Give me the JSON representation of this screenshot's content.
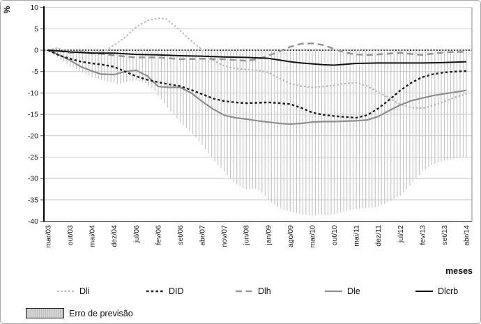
{
  "figure": {
    "unit_label": "%",
    "x_axis_title": "meses"
  },
  "axis": {
    "y_ticks": [
      10,
      5,
      0,
      -5,
      -10,
      -15,
      -20,
      -25,
      -30,
      -35,
      -40
    ],
    "ylim": [
      -40,
      10
    ],
    "x_labels": [
      "mar/03",
      "out/03",
      "mai/04",
      "dez/04",
      "jul/06",
      "fev/06",
      "set/06",
      "abr/07",
      "nov/07",
      "jun/08",
      "jan/09",
      "ago/09",
      "mar/10",
      "out/10",
      "mai/11",
      "dez/11",
      "jul/12",
      "fev/13",
      "set/13",
      "abr/14"
    ],
    "grid_color": "#cccccc",
    "axis_color": "#333333"
  },
  "chart_data": {
    "type": "line",
    "title": "",
    "xlabel": "meses",
    "ylabel": "%",
    "ylim": [
      -40,
      10
    ],
    "categories": [
      "mar/03",
      "out/03",
      "mai/04",
      "dez/04",
      "jul/06",
      "fev/06",
      "set/06",
      "abr/07",
      "nov/07",
      "jun/08",
      "jan/09",
      "ago/09",
      "mar/10",
      "out/10",
      "mai/11",
      "dez/11",
      "jul/12",
      "fev/13",
      "set/13",
      "abr/14"
    ],
    "x_is_category_index": true,
    "legend_position": "bottom",
    "grid": "horizontal",
    "series": [
      {
        "name": "Dli",
        "color": "#b5b5b5",
        "dash": "2.5 2.8",
        "width": 2,
        "points": [
          [
            0,
            0
          ],
          [
            0.4,
            0.5
          ],
          [
            0.8,
            -0.2
          ],
          [
            1,
            -0.6
          ],
          [
            1.4,
            -0.2
          ],
          [
            2,
            -0.5
          ],
          [
            2.5,
            -0.4
          ],
          [
            3,
            1.2
          ],
          [
            3.5,
            3
          ],
          [
            4,
            5.4
          ],
          [
            4.5,
            6.9
          ],
          [
            5,
            7.5
          ],
          [
            5.4,
            7.2
          ],
          [
            6,
            4.6
          ],
          [
            6.5,
            2.2
          ],
          [
            7,
            0.1
          ],
          [
            7.5,
            -2.4
          ],
          [
            8,
            -3.7
          ],
          [
            8.5,
            -4.3
          ],
          [
            9,
            -4.5
          ],
          [
            9.5,
            -4.7
          ],
          [
            10,
            -5.2
          ],
          [
            10.5,
            -6.6
          ],
          [
            11,
            -7.8
          ],
          [
            11.5,
            -8.4
          ],
          [
            12,
            -8.7
          ],
          [
            12.5,
            -8.5
          ],
          [
            13,
            -8.2
          ],
          [
            13.5,
            -7.8
          ],
          [
            14,
            -7.6
          ],
          [
            14.5,
            -8.4
          ],
          [
            15,
            -9.8
          ],
          [
            15.5,
            -11.2
          ],
          [
            16,
            -12.7
          ],
          [
            16.5,
            -13.4
          ],
          [
            17,
            -13.6
          ],
          [
            17.5,
            -12.9
          ],
          [
            18,
            -12
          ],
          [
            18.5,
            -11
          ],
          [
            19,
            -10.2
          ]
        ]
      },
      {
        "name": "DID",
        "color": "#1a1a1a",
        "dash": "3.5 3.2",
        "width": 2.4,
        "points": [
          [
            0,
            0
          ],
          [
            0.5,
            -1.2
          ],
          [
            1,
            -2
          ],
          [
            1.5,
            -2.7
          ],
          [
            2,
            -3.1
          ],
          [
            2.5,
            -3.4
          ],
          [
            3,
            -3.9
          ],
          [
            3.5,
            -5
          ],
          [
            4,
            -6.1
          ],
          [
            4.5,
            -6.9
          ],
          [
            5,
            -7.5
          ],
          [
            5.5,
            -8
          ],
          [
            6,
            -8.4
          ],
          [
            6.5,
            -9.3
          ],
          [
            7,
            -10.3
          ],
          [
            7.5,
            -11.3
          ],
          [
            8,
            -11.9
          ],
          [
            8.5,
            -12.2
          ],
          [
            9,
            -12.4
          ],
          [
            9.5,
            -12.3
          ],
          [
            10,
            -12.2
          ],
          [
            10.5,
            -12.4
          ],
          [
            11,
            -12.6
          ],
          [
            11.5,
            -13.5
          ],
          [
            12,
            -14.6
          ],
          [
            12.5,
            -15.1
          ],
          [
            13,
            -15.4
          ],
          [
            13.5,
            -15.6
          ],
          [
            14,
            -15.8
          ],
          [
            14.5,
            -15.2
          ],
          [
            15,
            -13.6
          ],
          [
            15.5,
            -11.6
          ],
          [
            16,
            -9.4
          ],
          [
            16.5,
            -7.6
          ],
          [
            17,
            -6.3
          ],
          [
            17.5,
            -5.6
          ],
          [
            18,
            -5.2
          ],
          [
            18.5,
            -5
          ],
          [
            19,
            -4.9
          ]
        ]
      },
      {
        "name": "Dlh",
        "color": "#979797",
        "dash": "9 5.5",
        "width": 2.6,
        "points": [
          [
            0,
            0
          ],
          [
            0.5,
            -0.2
          ],
          [
            1,
            -0.6
          ],
          [
            1.5,
            -0.5
          ],
          [
            2,
            -0.7
          ],
          [
            2.5,
            -0.9
          ],
          [
            3,
            -1.2
          ],
          [
            3.5,
            -1.5
          ],
          [
            4,
            -1.7
          ],
          [
            5,
            -1.7
          ],
          [
            5.5,
            -1.9
          ],
          [
            6,
            -2.1
          ],
          [
            7,
            -2
          ],
          [
            8,
            -2.1
          ],
          [
            8.5,
            -2.3
          ],
          [
            9,
            -2.5
          ],
          [
            9.5,
            -2.1
          ],
          [
            10,
            -1.3
          ],
          [
            10.5,
            -0.3
          ],
          [
            11,
            0.8
          ],
          [
            11.5,
            1.5
          ],
          [
            12,
            1.6
          ],
          [
            12.5,
            1.2
          ],
          [
            13,
            0.3
          ],
          [
            13.5,
            -0.6
          ],
          [
            14,
            -1
          ],
          [
            14.5,
            -1.1
          ],
          [
            15,
            -1
          ],
          [
            15.5,
            -0.8
          ],
          [
            16,
            -0.6
          ],
          [
            16.5,
            -0.9
          ],
          [
            17,
            -1.1
          ],
          [
            17.5,
            -0.8
          ],
          [
            18,
            -0.5
          ],
          [
            18.5,
            -0.4
          ],
          [
            19,
            -0.4
          ]
        ]
      },
      {
        "name": "Dle",
        "color": "#8e8e8e",
        "dash": "",
        "width": 2.2,
        "points": [
          [
            0,
            0
          ],
          [
            0.5,
            -1.1
          ],
          [
            1,
            -2.4
          ],
          [
            1.5,
            -3.9
          ],
          [
            2,
            -4.9
          ],
          [
            2.4,
            -5.6
          ],
          [
            3,
            -5.7
          ],
          [
            3.5,
            -5
          ],
          [
            4,
            -4.7
          ],
          [
            4.5,
            -6
          ],
          [
            5,
            -8.5
          ],
          [
            5.5,
            -8.7
          ],
          [
            6,
            -8.7
          ],
          [
            6.5,
            -10
          ],
          [
            7,
            -12
          ],
          [
            7.5,
            -13.8
          ],
          [
            8,
            -15.2
          ],
          [
            8.5,
            -15.8
          ],
          [
            9,
            -16.1
          ],
          [
            9.5,
            -16.5
          ],
          [
            10,
            -16.8
          ],
          [
            10.5,
            -17.1
          ],
          [
            11,
            -17.3
          ],
          [
            11.5,
            -17.1
          ],
          [
            12,
            -16.8
          ],
          [
            12.5,
            -16.7
          ],
          [
            13,
            -16.7
          ],
          [
            13.5,
            -16.6
          ],
          [
            14,
            -16.5
          ],
          [
            14.5,
            -16.3
          ],
          [
            15,
            -15.5
          ],
          [
            15.5,
            -14.1
          ],
          [
            16,
            -12.8
          ],
          [
            16.5,
            -11.8
          ],
          [
            17,
            -11.2
          ],
          [
            17.5,
            -10.6
          ],
          [
            18,
            -10.2
          ],
          [
            18.5,
            -9.8
          ],
          [
            19,
            -9.4
          ]
        ]
      },
      {
        "name": "Dlcrb",
        "color": "#111111",
        "dash": "",
        "width": 2,
        "points": [
          [
            0,
            0
          ],
          [
            0.5,
            -0.2
          ],
          [
            1,
            -0.4
          ],
          [
            2,
            -0.7
          ],
          [
            3,
            -0.7
          ],
          [
            4,
            -1
          ],
          [
            5,
            -1.1
          ],
          [
            6,
            -1.3
          ],
          [
            7,
            -1.4
          ],
          [
            8,
            -1.6
          ],
          [
            9,
            -1.7
          ],
          [
            10,
            -1.9
          ],
          [
            10.5,
            -2.3
          ],
          [
            11,
            -2.7
          ],
          [
            11.5,
            -3
          ],
          [
            12,
            -3.2
          ],
          [
            12.5,
            -3.4
          ],
          [
            13,
            -3.5
          ],
          [
            13.5,
            -3.3
          ],
          [
            14,
            -3.1
          ],
          [
            15,
            -3
          ],
          [
            16,
            -3
          ],
          [
            17,
            -3
          ],
          [
            18,
            -2.9
          ],
          [
            19,
            -2.7
          ]
        ]
      }
    ],
    "error_area": {
      "name": "Erro de previsão",
      "style": "vertical-hatch",
      "hatch_color": "#c7c7c7",
      "top_edge_color": "#000000",
      "top_value": 0,
      "points": [
        [
          0,
          0
        ],
        [
          0.5,
          -2
        ],
        [
          1,
          -3.7
        ],
        [
          1.5,
          -5.1
        ],
        [
          2,
          -6.2
        ],
        [
          2.5,
          -7.1
        ],
        [
          3,
          -7.7
        ],
        [
          3.2,
          -8.1
        ],
        [
          3.6,
          -7.3
        ],
        [
          4,
          -7.1
        ],
        [
          4.4,
          -7.6
        ],
        [
          4.8,
          -9.2
        ],
        [
          5,
          -10.6
        ],
        [
          5.5,
          -13.9
        ],
        [
          6,
          -16.8
        ],
        [
          6.5,
          -19.2
        ],
        [
          7,
          -22.2
        ],
        [
          7.5,
          -25.6
        ],
        [
          8,
          -28.4
        ],
        [
          8.5,
          -31.2
        ],
        [
          9,
          -32.6
        ],
        [
          9.4,
          -32.3
        ],
        [
          9.7,
          -33.2
        ],
        [
          10,
          -35
        ],
        [
          10.5,
          -36.9
        ],
        [
          11,
          -37.7
        ],
        [
          11.5,
          -38.4
        ],
        [
          12,
          -38.7
        ],
        [
          12.4,
          -38.4
        ],
        [
          12.7,
          -38.6
        ],
        [
          13,
          -38.3
        ],
        [
          13.5,
          -37.6
        ],
        [
          14,
          -37.1
        ],
        [
          14.5,
          -36.9
        ],
        [
          15,
          -36.6
        ],
        [
          15.5,
          -35.4
        ],
        [
          16,
          -34
        ],
        [
          16.4,
          -31.8
        ],
        [
          16.8,
          -29.5
        ],
        [
          17,
          -28.3
        ],
        [
          17.5,
          -26.6
        ],
        [
          18,
          -25.8
        ],
        [
          18.5,
          -25.3
        ],
        [
          19,
          -25
        ]
      ]
    }
  }
}
